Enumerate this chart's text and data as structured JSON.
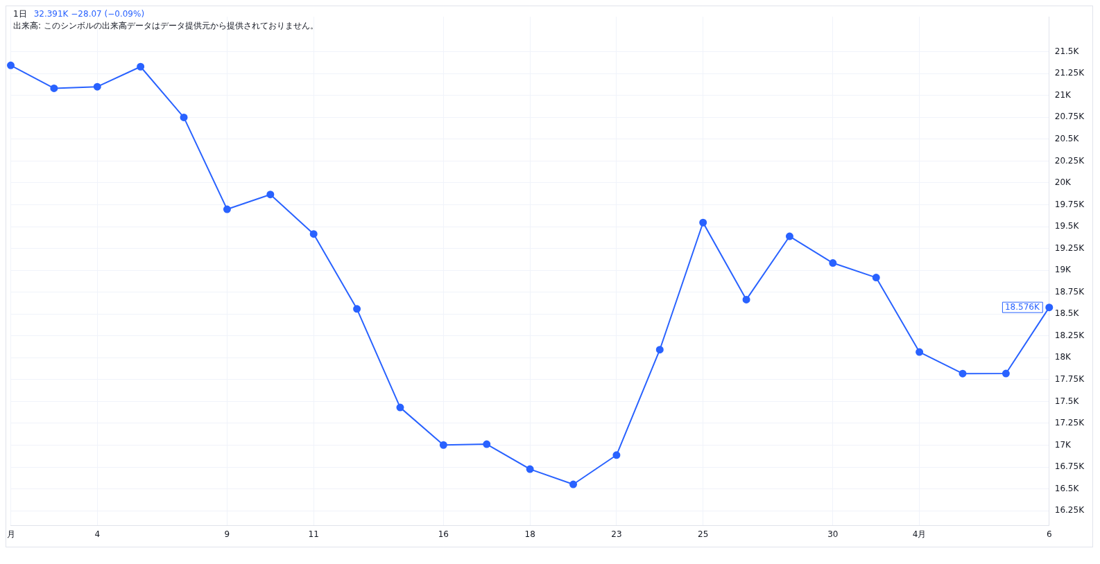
{
  "chart_data": {
    "type": "line",
    "title": "1日",
    "annotations": [
      "32.391K −28.07 (−0.09%)",
      "出来高: このシンボルの出来高データはデータ提供元から提供されておりません。",
      "18.576K"
    ],
    "categories": [
      "月",
      null,
      "4",
      null,
      null,
      "9",
      null,
      "11",
      null,
      null,
      "16",
      null,
      "18",
      null,
      "23",
      null,
      "25",
      null,
      null,
      "30",
      null,
      "4月",
      null,
      null,
      "6"
    ],
    "series": [
      {
        "color": "#2962ff",
        "values": [
          21344,
          21082,
          21100,
          21329,
          20749,
          19698,
          19867,
          19416,
          18559,
          17431,
          17002,
          17011,
          16726,
          16552,
          16887,
          18092,
          19546,
          18665,
          19389,
          19084,
          18917,
          18065,
          17819,
          17820,
          18576
        ]
      }
    ],
    "ylim": [
      16080,
      21900
    ],
    "yticks": [
      {
        "value": 16250,
        "label": "16.25K"
      },
      {
        "value": 16500,
        "label": "16.5K"
      },
      {
        "value": 16750,
        "label": "16.75K"
      },
      {
        "value": 17000,
        "label": "17K"
      },
      {
        "value": 17250,
        "label": "17.25K"
      },
      {
        "value": 17500,
        "label": "17.5K"
      },
      {
        "value": 17750,
        "label": "17.75K"
      },
      {
        "value": 18000,
        "label": "18K"
      },
      {
        "value": 18250,
        "label": "18.25K"
      },
      {
        "value": 18500,
        "label": "18.5K"
      },
      {
        "value": 18750,
        "label": "18.75K"
      },
      {
        "value": 19000,
        "label": "19K"
      },
      {
        "value": 19250,
        "label": "19.25K"
      },
      {
        "value": 19500,
        "label": "19.5K"
      },
      {
        "value": 19750,
        "label": "19.75K"
      },
      {
        "value": 20000,
        "label": "20K"
      },
      {
        "value": 20250,
        "label": "20.25K"
      },
      {
        "value": 20500,
        "label": "20.5K"
      },
      {
        "value": 20750,
        "label": "20.75K"
      },
      {
        "value": 21000,
        "label": "21K"
      },
      {
        "value": 21250,
        "label": "21.25K"
      },
      {
        "value": 21500,
        "label": "21.5K"
      }
    ],
    "grid": true,
    "legend": false,
    "marker": "circle",
    "line_style": "solid"
  }
}
